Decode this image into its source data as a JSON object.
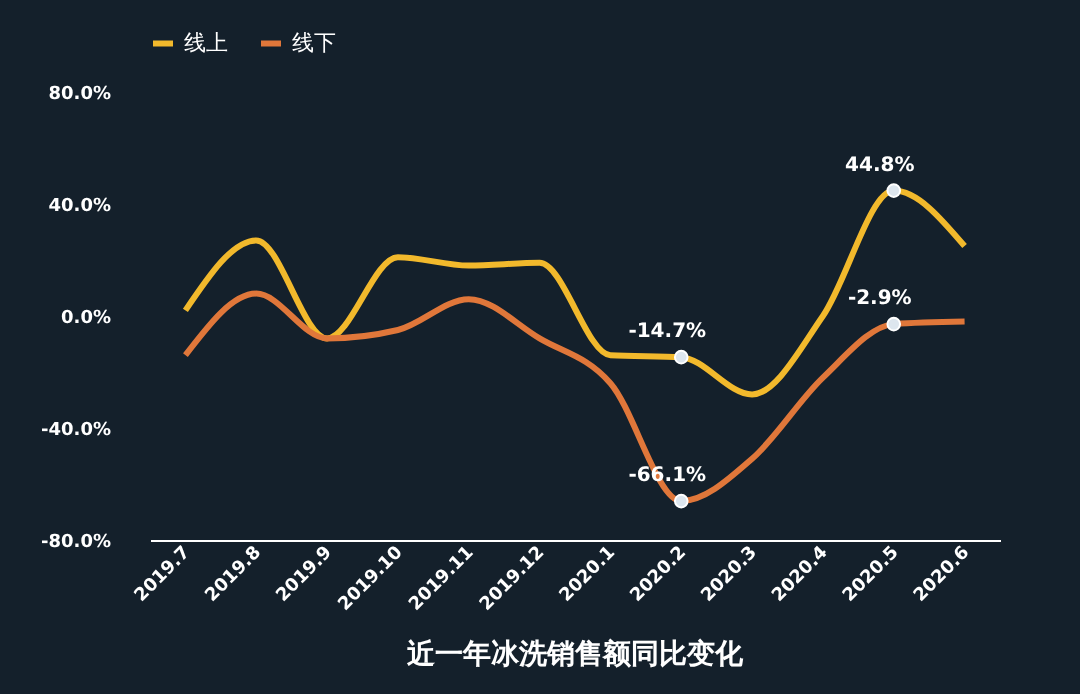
{
  "chart_data": {
    "type": "line",
    "title": "近一年冰洗销售额同比变化",
    "categories": [
      "2019.7",
      "2019.8",
      "2019.9",
      "2019.10",
      "2019.11",
      "2019.12",
      "2020.1",
      "2020.2",
      "2020.3",
      "2020.4",
      "2020.5",
      "2020.6"
    ],
    "series": [
      {
        "name": "线上",
        "color": "#f2b92c",
        "values": [
          2,
          27,
          -8,
          21,
          18,
          19,
          -14,
          -14.7,
          -28,
          0,
          44.8,
          25
        ],
        "value_labels": [
          null,
          null,
          null,
          null,
          null,
          null,
          null,
          "-14.7%",
          null,
          null,
          "44.8%",
          null
        ]
      },
      {
        "name": "线下",
        "color": "#e0773a",
        "values": [
          -14,
          8,
          -8,
          -5,
          6,
          -8,
          -24,
          -66.1,
          -51,
          -22,
          -2.9,
          -2
        ],
        "value_labels": [
          null,
          null,
          null,
          null,
          null,
          null,
          null,
          "-66.1%",
          null,
          null,
          "-2.9%",
          null
        ]
      }
    ],
    "ylim": [
      -80,
      80
    ],
    "yticks": [
      {
        "value": -80,
        "label": "-80.0%"
      },
      {
        "value": -40,
        "label": "-40.0%"
      },
      {
        "value": 0,
        "label": "0.0%"
      },
      {
        "value": 40,
        "label": "40.0%"
      },
      {
        "value": 80,
        "label": "80.0%"
      }
    ],
    "grid": false,
    "legend": "top",
    "line_style": "solid"
  }
}
